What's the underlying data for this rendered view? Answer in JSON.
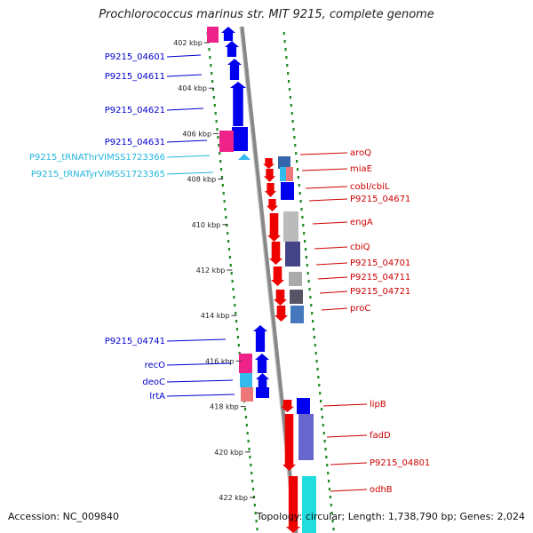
{
  "title": "Prochlorococcus marinus str. MIT 9215, complete genome",
  "accession": "Accession: NC_009840",
  "footer": "Topology: circular; Length: 1,738,790 bp; Genes: 2,024",
  "ticks": [
    {
      "label": "402 kbp",
      "pos": 402
    },
    {
      "label": "404 kbp",
      "pos": 404
    },
    {
      "label": "406 kbp",
      "pos": 406
    },
    {
      "label": "408 kbp",
      "pos": 408
    },
    {
      "label": "410 kbp",
      "pos": 410
    },
    {
      "label": "412 kbp",
      "pos": 412
    },
    {
      "label": "414 kbp",
      "pos": 414
    },
    {
      "label": "416 kbp",
      "pos": 416
    },
    {
      "label": "418 kbp",
      "pos": 418
    },
    {
      "label": "420 kbp",
      "pos": 420
    },
    {
      "label": "422 kbp",
      "pos": 422
    }
  ],
  "left_labels": [
    {
      "text": "P9215_04601",
      "color": "#0000cc"
    },
    {
      "text": "P9215_04611",
      "color": "#0000cc"
    },
    {
      "text": "P9215_04621",
      "color": "#0000cc"
    },
    {
      "text": "P9215_04631",
      "color": "#0000cc"
    },
    {
      "text": "P9215_tRNAThrVIMSS1723366",
      "color": "#22b5dd"
    },
    {
      "text": "P9215_tRNATyrVIMSS1723365",
      "color": "#22b5dd"
    },
    {
      "text": "P9215_04741",
      "color": "#0000cc"
    },
    {
      "text": "recO",
      "color": "#0000cc"
    },
    {
      "text": "deoC",
      "color": "#0000cc"
    },
    {
      "text": "lrtA",
      "color": "#0000cc"
    }
  ],
  "right_labels": [
    {
      "text": "aroQ",
      "color": "#cc0000"
    },
    {
      "text": "miaE",
      "color": "#cc0000"
    },
    {
      "text": "cobI/cbiL",
      "color": "#cc0000"
    },
    {
      "text": "P9215_04671",
      "color": "#cc0000"
    },
    {
      "text": "engA",
      "color": "#cc0000"
    },
    {
      "text": "cbiQ",
      "color": "#cc0000"
    },
    {
      "text": "P9215_04701",
      "color": "#cc0000"
    },
    {
      "text": "P9215_04711",
      "color": "#cc0000"
    },
    {
      "text": "P9215_04721",
      "color": "#cc0000"
    },
    {
      "text": "proC",
      "color": "#cc0000"
    },
    {
      "text": "lipB",
      "color": "#cc0000"
    },
    {
      "text": "fadD",
      "color": "#cc0000"
    },
    {
      "text": "P9215_04801",
      "color": "#cc0000"
    },
    {
      "text": "odhB",
      "color": "#cc0000"
    }
  ],
  "colors": {
    "reverse_strand": "#0000ee",
    "forward_strand": "#ee0000",
    "trna": "#33bbee",
    "backbone": "#888888",
    "dots": "#228822"
  }
}
